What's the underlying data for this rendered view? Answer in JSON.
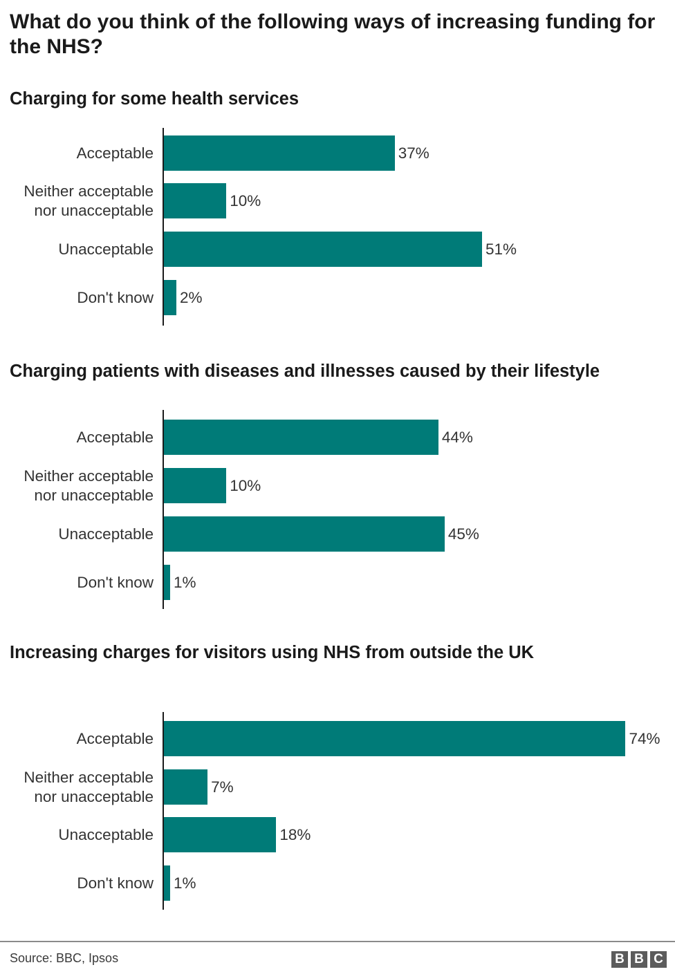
{
  "title": "What do you think of the following ways of increasing funding for the NHS?",
  "colors": {
    "bar": "#007b78",
    "axis": "#1a1a1a",
    "text": "#333333",
    "logo_bg": "#5c5c5c"
  },
  "charts": [
    {
      "subtitle": "Charging for some health services",
      "rows": [
        {
          "label": "Acceptable",
          "value": 37,
          "value_label": "37%"
        },
        {
          "label": "Neither acceptable\nnor unacceptable",
          "value": 10,
          "value_label": "10%"
        },
        {
          "label": "Unacceptable",
          "value": 51,
          "value_label": "51%"
        },
        {
          "label": "Don't know",
          "value": 2,
          "value_label": "2%"
        }
      ]
    },
    {
      "subtitle": "Charging patients with diseases and illnesses caused by their lifestyle",
      "rows": [
        {
          "label": "Acceptable",
          "value": 44,
          "value_label": "44%"
        },
        {
          "label": "Neither acceptable\nnor unacceptable",
          "value": 10,
          "value_label": "10%"
        },
        {
          "label": "Unacceptable",
          "value": 45,
          "value_label": "45%"
        },
        {
          "label": "Don't know",
          "value": 1,
          "value_label": "1%"
        }
      ]
    },
    {
      "subtitle": "Increasing charges for visitors using NHS from outside the UK",
      "rows": [
        {
          "label": "Acceptable",
          "value": 74,
          "value_label": "74%"
        },
        {
          "label": "Neither acceptable\nnor unacceptable",
          "value": 7,
          "value_label": "7%"
        },
        {
          "label": "Unacceptable",
          "value": 18,
          "value_label": "18%"
        },
        {
          "label": "Don't know",
          "value": 1,
          "value_label": "1%"
        }
      ]
    }
  ],
  "footer": {
    "source": "Source: BBC, Ipsos",
    "logo_letters": [
      "B",
      "B",
      "C"
    ]
  },
  "chart_data": [
    {
      "type": "bar",
      "orientation": "horizontal",
      "title": "Charging for some health services",
      "categories": [
        "Acceptable",
        "Neither acceptable nor unacceptable",
        "Unacceptable",
        "Don't know"
      ],
      "values": [
        37,
        10,
        51,
        2
      ],
      "unit": "%",
      "xlabel": "",
      "ylabel": "",
      "grid": false,
      "legend": null
    },
    {
      "type": "bar",
      "orientation": "horizontal",
      "title": "Charging patients with diseases and illnesses caused by their lifestyle",
      "categories": [
        "Acceptable",
        "Neither acceptable nor unacceptable",
        "Unacceptable",
        "Don't know"
      ],
      "values": [
        44,
        10,
        45,
        1
      ],
      "unit": "%",
      "xlabel": "",
      "ylabel": "",
      "grid": false,
      "legend": null
    },
    {
      "type": "bar",
      "orientation": "horizontal",
      "title": "Increasing charges for visitors using NHS from outside the UK",
      "categories": [
        "Acceptable",
        "Neither acceptable nor unacceptable",
        "Unacceptable",
        "Don't know"
      ],
      "values": [
        74,
        7,
        18,
        1
      ],
      "unit": "%",
      "xlabel": "",
      "ylabel": "",
      "grid": false,
      "legend": null
    }
  ]
}
